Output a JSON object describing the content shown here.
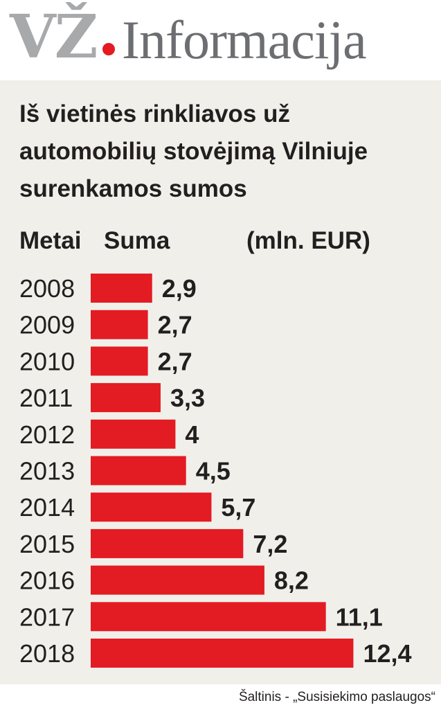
{
  "logo": {
    "vz": "VŽ",
    "info": "Informacija"
  },
  "title_lines": [
    "Iš vietinės rinkliavos už",
    "automobilių stovėjimą Vilniuje",
    "surenkamos sumos"
  ],
  "columns": {
    "year": "Metai",
    "amount": "Suma",
    "unit": "(mln. EUR)"
  },
  "source": "Šaltinis - „Susisiekimo paslaugos“",
  "colors": {
    "bar": "#e31b23",
    "panel": "#f1efe9",
    "logo_gray": "#a8a9ab",
    "text": "#231f20"
  },
  "chart_data": {
    "type": "bar",
    "orientation": "horizontal",
    "categories": [
      "2008",
      "2009",
      "2010",
      "2011",
      "2012",
      "2013",
      "2014",
      "2015",
      "2016",
      "2017",
      "2018"
    ],
    "values": [
      2.9,
      2.7,
      2.7,
      3.3,
      4,
      4.5,
      5.7,
      7.2,
      8.2,
      11.1,
      12.4
    ],
    "value_labels": [
      "2,9",
      "2,7",
      "2,7",
      "3,3",
      "4",
      "4,5",
      "5,7",
      "7,2",
      "8,2",
      "11,1",
      "12,4"
    ],
    "title": "Iš vietinės rinkliavos už automobilių stovėjimą Vilniuje surenkamos sumos",
    "xlabel": "Suma (mln. EUR)",
    "ylabel": "Metai",
    "grid": false,
    "legend": "none"
  }
}
